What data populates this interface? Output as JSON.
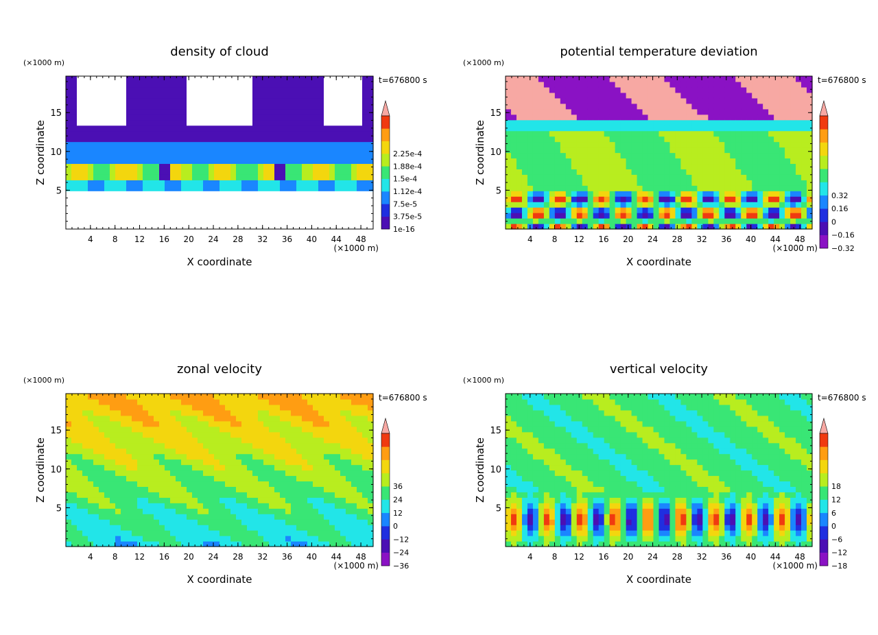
{
  "chart_data": [
    {
      "type": "heatmap",
      "title": "density of cloud",
      "xlabel": "X coordinate",
      "ylabel": "Z coordinate",
      "x_unit": "(×1000 m)",
      "y_unit": "(×1000 m)",
      "time_label": "t=676800 s",
      "xlim": [
        0,
        50
      ],
      "ylim": [
        0,
        19.7
      ],
      "x_ticks": [
        4,
        8,
        12,
        16,
        20,
        24,
        28,
        32,
        36,
        40,
        44,
        48
      ],
      "x_tick_labels": [
        "4",
        "8",
        "12",
        "16",
        "20",
        "24",
        "28",
        "32",
        "36",
        "40",
        "44",
        "48"
      ],
      "y_ticks": [
        5,
        10,
        15
      ],
      "y_tick_labels": [
        "5",
        "10",
        "15"
      ],
      "colorbar": {
        "levels": [
          1e-16,
          3.75e-05,
          7.5e-05,
          0.000112,
          0.00015,
          0.000188,
          0.000225
        ],
        "labels": [
          "1e-16",
          "3.75e-5",
          "7.5e-5",
          "1.12e-4",
          "1.5e-4",
          "1.88e-4",
          "2.25e-4"
        ],
        "colors": [
          "#4b0fb4",
          "#1f2fe0",
          "#1a86ff",
          "#22e5e8",
          "#39e675",
          "#b8ed1f",
          "#f3d60e",
          "#ff9d12",
          "#f03a10",
          "#f7a8a3"
        ]
      }
    },
    {
      "type": "heatmap",
      "title": "potential temperature deviation",
      "xlabel": "X coordinate",
      "ylabel": "Z coordinate",
      "x_unit": "(×1000 m)",
      "y_unit": "(×1000 m)",
      "time_label": "t=676800 s",
      "xlim": [
        0,
        50
      ],
      "ylim": [
        0,
        19.7
      ],
      "x_ticks": [
        4,
        8,
        12,
        16,
        20,
        24,
        28,
        32,
        36,
        40,
        44,
        48
      ],
      "x_tick_labels": [
        "4",
        "8",
        "12",
        "16",
        "20",
        "24",
        "28",
        "32",
        "36",
        "40",
        "44",
        "48"
      ],
      "y_ticks": [
        5,
        10,
        15
      ],
      "y_tick_labels": [
        "5",
        "10",
        "15"
      ],
      "colorbar": {
        "levels": [
          -0.32,
          -0.16,
          0,
          0.16,
          0.32
        ],
        "labels": [
          "−0.32",
          "−0.16",
          "0",
          "0.16",
          "0.32"
        ],
        "colors": [
          "#8a12c4",
          "#4b0fb4",
          "#1f2fe0",
          "#1a86ff",
          "#22e5e8",
          "#39e675",
          "#b8ed1f",
          "#f3d60e",
          "#ff9d12",
          "#f03a10",
          "#f7a8a3"
        ]
      }
    },
    {
      "type": "heatmap",
      "title": "zonal velocity",
      "xlabel": "X coordinate",
      "ylabel": "Z coordinate",
      "x_unit": "(×1000 m)",
      "y_unit": "(×1000 m)",
      "time_label": "t=676800 s",
      "xlim": [
        0,
        50
      ],
      "ylim": [
        0,
        19.7
      ],
      "x_ticks": [
        4,
        8,
        12,
        16,
        20,
        24,
        28,
        32,
        36,
        40,
        44,
        48
      ],
      "x_tick_labels": [
        "4",
        "8",
        "12",
        "16",
        "20",
        "24",
        "28",
        "32",
        "36",
        "40",
        "44",
        "48"
      ],
      "y_ticks": [
        5,
        10,
        15
      ],
      "y_tick_labels": [
        "5",
        "10",
        "15"
      ],
      "colorbar": {
        "levels": [
          -36,
          -24,
          -12,
          0,
          12,
          24,
          36
        ],
        "labels": [
          "−36",
          "−24",
          "−12",
          "0",
          "12",
          "24",
          "36"
        ],
        "colors": [
          "#8a12c4",
          "#4b0fb4",
          "#1f2fe0",
          "#1a86ff",
          "#22e5e8",
          "#39e675",
          "#b8ed1f",
          "#f3d60e",
          "#ff9d12",
          "#f03a10",
          "#f7a8a3"
        ]
      }
    },
    {
      "type": "heatmap",
      "title": "vertical velocity",
      "xlabel": "X coordinate",
      "ylabel": "Z coordinate",
      "x_unit": "(×1000 m)",
      "y_unit": "(×1000 m)",
      "time_label": "t=676800 s",
      "xlim": [
        0,
        50
      ],
      "ylim": [
        0,
        19.7
      ],
      "x_ticks": [
        4,
        8,
        12,
        16,
        20,
        24,
        28,
        32,
        36,
        40,
        44,
        48
      ],
      "x_tick_labels": [
        "4",
        "8",
        "12",
        "16",
        "20",
        "24",
        "28",
        "32",
        "36",
        "40",
        "44",
        "48"
      ],
      "y_ticks": [
        5,
        10,
        15
      ],
      "y_tick_labels": [
        "5",
        "10",
        "15"
      ],
      "colorbar": {
        "levels": [
          -18,
          -12,
          -6,
          0,
          6,
          12,
          18
        ],
        "labels": [
          "−18",
          "−12",
          "−6",
          "0",
          "6",
          "12",
          "18"
        ],
        "colors": [
          "#8a12c4",
          "#4b0fb4",
          "#1f2fe0",
          "#1a86ff",
          "#22e5e8",
          "#39e675",
          "#b8ed1f",
          "#f3d60e",
          "#ff9d12",
          "#f03a10",
          "#f7a8a3"
        ]
      }
    }
  ]
}
